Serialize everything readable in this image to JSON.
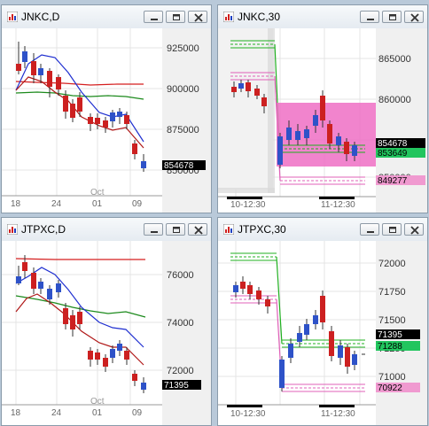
{
  "windows": [
    {
      "title": "JNKC,D",
      "price_labels": [
        "925000",
        "900000",
        "875000",
        "850000"
      ],
      "x_labels": [
        "18",
        "24",
        "Oct",
        "01",
        "09"
      ],
      "current_price": "854678",
      "current_price_color": "#000000"
    },
    {
      "title": "JNKC,30",
      "price_labels": [
        "865000",
        "860000",
        "850000"
      ],
      "x_labels": [
        "10-12:30",
        "11-12:30"
      ],
      "tags": [
        {
          "text": "854678",
          "bg": "#000000",
          "fg": "#ffffff"
        },
        {
          "text": "853649",
          "bg": "#22c55e",
          "fg": "#000000"
        },
        {
          "text": "849277",
          "bg": "#f09ad0",
          "fg": "#000000"
        }
      ],
      "shaded_area_color": "#ee6fc4"
    },
    {
      "title": "JTPXC,D",
      "price_labels": [
        "76000",
        "74000",
        "72000"
      ],
      "x_labels": [
        "18",
        "24",
        "Oct",
        "01",
        "09"
      ],
      "current_price": "71395",
      "current_price_color": "#000000"
    },
    {
      "title": "JTPXC,30",
      "price_labels": [
        "72000",
        "71750",
        "71500",
        "71250",
        "71000"
      ],
      "x_labels": [
        "10-12:30",
        "11-12:30"
      ],
      "tags": [
        {
          "text": "71395",
          "bg": "#000000",
          "fg": "#ffffff"
        },
        {
          "text": "71288",
          "bg": "#22c55e",
          "fg": "#000000"
        },
        {
          "text": "70922",
          "bg": "#f09ad0",
          "fg": "#000000"
        }
      ]
    }
  ],
  "icons": {
    "app": "chart-window-icon",
    "minimize": "minimize-icon",
    "maximize": "maximize-icon",
    "close": "close-icon"
  },
  "colors": {
    "bull_candle": "#2e52c8",
    "bear_candle": "#cc2020",
    "ma_fast": "#1f2fd0",
    "ma_mid": "#d51f1f",
    "ma_slow": "#1c8a1c",
    "level_green": "#20b020",
    "level_pink": "#e060b8"
  }
}
